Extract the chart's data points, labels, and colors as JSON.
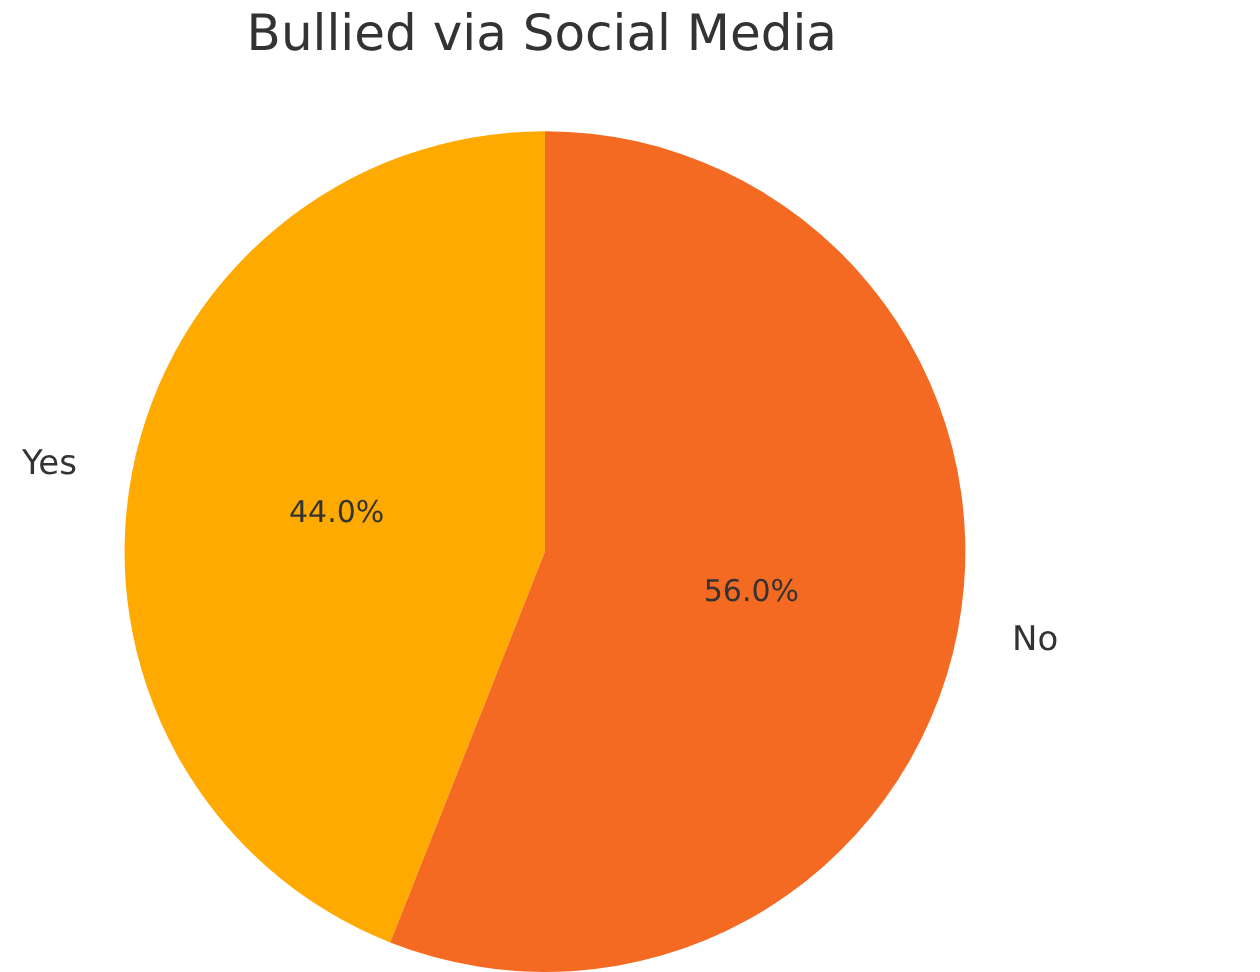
{
  "chart_data": {
    "type": "pie",
    "title": "Bullied via Social Media",
    "categories": [
      "Yes",
      "No"
    ],
    "values": [
      44,
      56
    ],
    "colors": [
      "#ffaa00",
      "#f46a22"
    ],
    "value_labels": [
      "44.0%",
      "56.0%"
    ],
    "legend": false
  }
}
